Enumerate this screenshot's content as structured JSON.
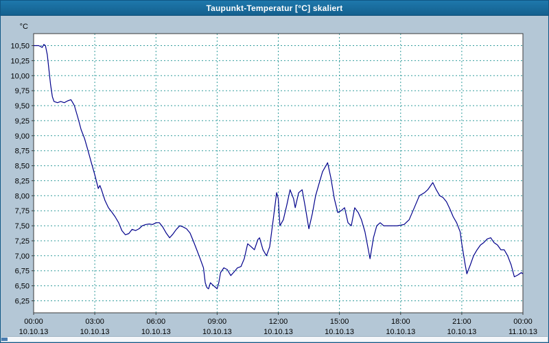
{
  "title": "Taupunkt-Temperatur [°C] skaliert",
  "window": {
    "titlebar_bg": "#17699d",
    "background": "#b4c7d6"
  },
  "chart_data": {
    "type": "line",
    "title": "Taupunkt-Temperatur [°C] skaliert",
    "xlabel": "",
    "ylabel": "°C",
    "xlim": [
      0,
      24
    ],
    "ylim": [
      6.05,
      10.7
    ],
    "grid": "dashed-teal",
    "legend_position": "none",
    "colors": {
      "plot_bg": "#ffffff",
      "grid": "#2e9b9b",
      "frame": "#3a3a3a",
      "line": "#00008b"
    },
    "yticks": [
      {
        "v": 10.5,
        "label": "10,50"
      },
      {
        "v": 10.25,
        "label": "10,25"
      },
      {
        "v": 10.0,
        "label": "10,00"
      },
      {
        "v": 9.75,
        "label": "9,75"
      },
      {
        "v": 9.5,
        "label": "9,50"
      },
      {
        "v": 9.25,
        "label": "9,25"
      },
      {
        "v": 9.0,
        "label": "9,00"
      },
      {
        "v": 8.75,
        "label": "8,75"
      },
      {
        "v": 8.5,
        "label": "8,50"
      },
      {
        "v": 8.25,
        "label": "8,25"
      },
      {
        "v": 8.0,
        "label": "8,00"
      },
      {
        "v": 7.75,
        "label": "7,75"
      },
      {
        "v": 7.5,
        "label": "7,50"
      },
      {
        "v": 7.25,
        "label": "7,25"
      },
      {
        "v": 7.0,
        "label": "7,00"
      },
      {
        "v": 6.75,
        "label": "6,75"
      },
      {
        "v": 6.5,
        "label": "6,50"
      },
      {
        "v": 6.25,
        "label": "6,25"
      }
    ],
    "xticks": [
      {
        "v": 0,
        "time": "00:00",
        "date": "10.10.13"
      },
      {
        "v": 3,
        "time": "03:00",
        "date": "10.10.13"
      },
      {
        "v": 6,
        "time": "06:00",
        "date": "10.10.13"
      },
      {
        "v": 9,
        "time": "09:00",
        "date": "10.10.13"
      },
      {
        "v": 12,
        "time": "12:00",
        "date": "10.10.13"
      },
      {
        "v": 15,
        "time": "15:00",
        "date": "10.10.13"
      },
      {
        "v": 18,
        "time": "18:00",
        "date": "10.10.13"
      },
      {
        "v": 21,
        "time": "21:00",
        "date": "10.10.13"
      },
      {
        "v": 24,
        "time": "00:00",
        "date": "11.10.13"
      }
    ],
    "series": [
      {
        "name": "Taupunkt-Temperatur",
        "points": [
          [
            0,
            10.5
          ],
          [
            0.25,
            10.5
          ],
          [
            0.42,
            10.47
          ],
          [
            0.5,
            10.52
          ],
          [
            0.58,
            10.5
          ],
          [
            0.67,
            10.35
          ],
          [
            0.75,
            10.1
          ],
          [
            0.83,
            9.85
          ],
          [
            0.92,
            9.65
          ],
          [
            1,
            9.57
          ],
          [
            1.17,
            9.55
          ],
          [
            1.33,
            9.57
          ],
          [
            1.5,
            9.55
          ],
          [
            1.67,
            9.58
          ],
          [
            1.83,
            9.6
          ],
          [
            1.92,
            9.55
          ],
          [
            2,
            9.5
          ],
          [
            2.17,
            9.3
          ],
          [
            2.33,
            9.1
          ],
          [
            2.5,
            8.95
          ],
          [
            2.67,
            8.75
          ],
          [
            2.83,
            8.55
          ],
          [
            3,
            8.35
          ],
          [
            3.17,
            8.12
          ],
          [
            3.25,
            8.17
          ],
          [
            3.33,
            8.1
          ],
          [
            3.5,
            7.92
          ],
          [
            3.67,
            7.8
          ],
          [
            3.83,
            7.73
          ],
          [
            4,
            7.65
          ],
          [
            4.17,
            7.55
          ],
          [
            4.33,
            7.42
          ],
          [
            4.5,
            7.35
          ],
          [
            4.67,
            7.37
          ],
          [
            4.83,
            7.44
          ],
          [
            5,
            7.42
          ],
          [
            5.17,
            7.45
          ],
          [
            5.33,
            7.5
          ],
          [
            5.5,
            7.52
          ],
          [
            5.67,
            7.53
          ],
          [
            5.83,
            7.52
          ],
          [
            6,
            7.55
          ],
          [
            6.17,
            7.55
          ],
          [
            6.33,
            7.48
          ],
          [
            6.5,
            7.38
          ],
          [
            6.67,
            7.3
          ],
          [
            6.83,
            7.36
          ],
          [
            7,
            7.44
          ],
          [
            7.17,
            7.5
          ],
          [
            7.33,
            7.48
          ],
          [
            7.5,
            7.45
          ],
          [
            7.67,
            7.38
          ],
          [
            7.83,
            7.25
          ],
          [
            8,
            7.1
          ],
          [
            8.17,
            6.95
          ],
          [
            8.33,
            6.8
          ],
          [
            8.42,
            6.55
          ],
          [
            8.5,
            6.47
          ],
          [
            8.58,
            6.45
          ],
          [
            8.67,
            6.55
          ],
          [
            8.83,
            6.5
          ],
          [
            9,
            6.45
          ],
          [
            9.08,
            6.55
          ],
          [
            9.17,
            6.72
          ],
          [
            9.33,
            6.8
          ],
          [
            9.5,
            6.77
          ],
          [
            9.67,
            6.67
          ],
          [
            9.83,
            6.73
          ],
          [
            10,
            6.8
          ],
          [
            10.17,
            6.82
          ],
          [
            10.33,
            6.95
          ],
          [
            10.5,
            7.2
          ],
          [
            10.67,
            7.15
          ],
          [
            10.83,
            7.1
          ],
          [
            11,
            7.27
          ],
          [
            11.08,
            7.3
          ],
          [
            11.25,
            7.1
          ],
          [
            11.42,
            7.0
          ],
          [
            11.58,
            7.15
          ],
          [
            11.75,
            7.6
          ],
          [
            11.92,
            8.05
          ],
          [
            12,
            7.95
          ],
          [
            12.08,
            7.5
          ],
          [
            12.25,
            7.6
          ],
          [
            12.42,
            7.85
          ],
          [
            12.58,
            8.1
          ],
          [
            12.75,
            7.95
          ],
          [
            12.83,
            7.8
          ],
          [
            13,
            8.05
          ],
          [
            13.17,
            8.1
          ],
          [
            13.33,
            7.8
          ],
          [
            13.5,
            7.45
          ],
          [
            13.67,
            7.7
          ],
          [
            13.83,
            8.0
          ],
          [
            14,
            8.2
          ],
          [
            14.17,
            8.4
          ],
          [
            14.42,
            8.55
          ],
          [
            14.58,
            8.3
          ],
          [
            14.75,
            7.95
          ],
          [
            14.92,
            7.72
          ],
          [
            15.08,
            7.75
          ],
          [
            15.25,
            7.8
          ],
          [
            15.42,
            7.55
          ],
          [
            15.58,
            7.5
          ],
          [
            15.75,
            7.8
          ],
          [
            15.92,
            7.72
          ],
          [
            16.08,
            7.6
          ],
          [
            16.25,
            7.4
          ],
          [
            16.5,
            6.95
          ],
          [
            16.67,
            7.3
          ],
          [
            16.83,
            7.5
          ],
          [
            17,
            7.55
          ],
          [
            17.17,
            7.5
          ],
          [
            17.5,
            7.5
          ],
          [
            17.83,
            7.5
          ],
          [
            18.17,
            7.52
          ],
          [
            18.42,
            7.6
          ],
          [
            18.67,
            7.8
          ],
          [
            18.92,
            8.0
          ],
          [
            19.17,
            8.05
          ],
          [
            19.33,
            8.1
          ],
          [
            19.58,
            8.22
          ],
          [
            19.75,
            8.1
          ],
          [
            19.92,
            8.0
          ],
          [
            20.08,
            7.97
          ],
          [
            20.25,
            7.9
          ],
          [
            20.42,
            7.78
          ],
          [
            20.58,
            7.65
          ],
          [
            20.75,
            7.55
          ],
          [
            20.92,
            7.4
          ],
          [
            21,
            7.2
          ],
          [
            21.17,
            6.85
          ],
          [
            21.25,
            6.7
          ],
          [
            21.42,
            6.85
          ],
          [
            21.58,
            7.0
          ],
          [
            21.75,
            7.1
          ],
          [
            21.92,
            7.18
          ],
          [
            22.08,
            7.22
          ],
          [
            22.25,
            7.28
          ],
          [
            22.42,
            7.3
          ],
          [
            22.58,
            7.22
          ],
          [
            22.75,
            7.18
          ],
          [
            22.92,
            7.1
          ],
          [
            23.08,
            7.1
          ],
          [
            23.25,
            7.0
          ],
          [
            23.42,
            6.85
          ],
          [
            23.58,
            6.65
          ],
          [
            23.75,
            6.68
          ],
          [
            23.92,
            6.72
          ],
          [
            24,
            6.7
          ]
        ]
      }
    ]
  }
}
